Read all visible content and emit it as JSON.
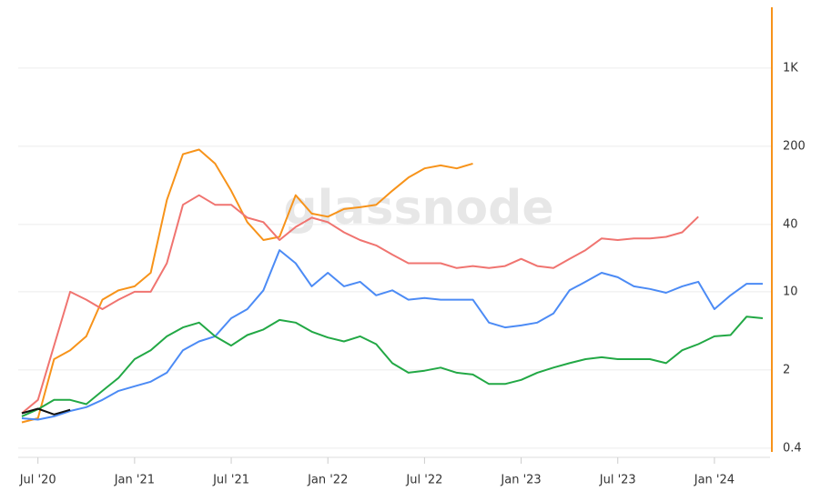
{
  "chart_data": {
    "type": "line",
    "watermark": "glassnode",
    "x": [
      "2020-06",
      "2020-07",
      "2020-08",
      "2020-09",
      "2020-10",
      "2020-11",
      "2020-12",
      "2021-01",
      "2021-02",
      "2021-03",
      "2021-04",
      "2021-05",
      "2021-06",
      "2021-07",
      "2021-08",
      "2021-09",
      "2021-10",
      "2021-11",
      "2021-12",
      "2022-01",
      "2022-02",
      "2022-03",
      "2022-04",
      "2022-05",
      "2022-06",
      "2022-07",
      "2022-08",
      "2022-09",
      "2022-10",
      "2022-11",
      "2022-12",
      "2023-01",
      "2023-02",
      "2023-03",
      "2023-04",
      "2023-05",
      "2023-06",
      "2023-07",
      "2023-08",
      "2023-09",
      "2023-10",
      "2023-11",
      "2023-12",
      "2024-01",
      "2024-02",
      "2024-03",
      "2024-04"
    ],
    "xlim": [
      "2020-06",
      "2024-04"
    ],
    "xticks": [
      {
        "value": "2020-07",
        "label": "Jul '20"
      },
      {
        "value": "2021-01",
        "label": "Jan '21"
      },
      {
        "value": "2021-07",
        "label": "Jul '21"
      },
      {
        "value": "2022-01",
        "label": "Jan '22"
      },
      {
        "value": "2022-07",
        "label": "Jul '22"
      },
      {
        "value": "2023-01",
        "label": "Jan '23"
      },
      {
        "value": "2023-07",
        "label": "Jul '23"
      },
      {
        "value": "2024-01",
        "label": "Jan '24"
      }
    ],
    "ylim": [
      0.35,
      3500
    ],
    "ylog": true,
    "y_axis_side": "right",
    "y_axis_color": "#f7931a",
    "yticks": [
      0.4,
      2,
      10,
      40,
      200,
      {
        "value": 1000,
        "label": "1K"
      }
    ],
    "grid": true,
    "series": [
      {
        "color": "#f7931a",
        "values": [
          0.68,
          0.74,
          2.5,
          3.0,
          4.0,
          8.5,
          10.3,
          11.2,
          14.8,
          66,
          170,
          187,
          140,
          80,
          42,
          29,
          31,
          73,
          50,
          47,
          55,
          57,
          60,
          80,
          105,
          127,
          135,
          127,
          140,
          null,
          null,
          null,
          null,
          null,
          null,
          null,
          null,
          null,
          null,
          null,
          null,
          null,
          null,
          null,
          null,
          null,
          null
        ]
      },
      {
        "color": "#f07470",
        "values": [
          0.82,
          1.08,
          3.3,
          10,
          8.5,
          7,
          8.5,
          10,
          10,
          18,
          60,
          73,
          60,
          60,
          46,
          42,
          29,
          38,
          46,
          42,
          34,
          29,
          26,
          21.5,
          18,
          18,
          18,
          16.3,
          17,
          16.3,
          17,
          19.7,
          17,
          16.3,
          19.7,
          23.6,
          30,
          29,
          30,
          30,
          31,
          34,
          47,
          null,
          null,
          null,
          null
        ]
      },
      {
        "color": "#4c8bf5",
        "values": [
          0.74,
          0.72,
          0.77,
          0.86,
          0.93,
          1.08,
          1.3,
          1.43,
          1.57,
          1.89,
          3.0,
          3.6,
          4.0,
          5.8,
          7,
          10.3,
          23.6,
          18,
          11.2,
          14.8,
          11.2,
          12.3,
          9.3,
          10.3,
          8.5,
          8.8,
          8.5,
          8.5,
          8.5,
          5.3,
          4.8,
          5.0,
          5.3,
          6.4,
          10.3,
          12.3,
          14.8,
          13.5,
          11.2,
          10.6,
          9.8,
          11.2,
          12.3,
          7,
          9.3,
          11.8,
          11.8
        ]
      },
      {
        "color": "#22a845",
        "values": [
          0.77,
          0.89,
          1.08,
          1.08,
          0.99,
          1.3,
          1.7,
          2.5,
          3.0,
          4.0,
          4.8,
          5.3,
          4.0,
          3.3,
          4.1,
          4.6,
          5.6,
          5.3,
          4.4,
          3.9,
          3.6,
          4.0,
          3.4,
          2.3,
          1.89,
          1.97,
          2.1,
          1.89,
          1.82,
          1.5,
          1.5,
          1.63,
          1.89,
          2.1,
          2.3,
          2.5,
          2.6,
          2.5,
          2.5,
          2.5,
          2.3,
          3.0,
          3.4,
          4.0,
          4.1,
          6.0,
          5.8
        ]
      },
      {
        "color": "#111111",
        "values": [
          0.82,
          0.9,
          0.8,
          0.88,
          null,
          null,
          null,
          null,
          null,
          null,
          null,
          null,
          null,
          null,
          null,
          null,
          null,
          null,
          null,
          null,
          null,
          null,
          null,
          null,
          null,
          null,
          null,
          null,
          null,
          null,
          null,
          null,
          null,
          null,
          null,
          null,
          null,
          null,
          null,
          null,
          null,
          null,
          null,
          null,
          null,
          null,
          null
        ]
      }
    ]
  }
}
